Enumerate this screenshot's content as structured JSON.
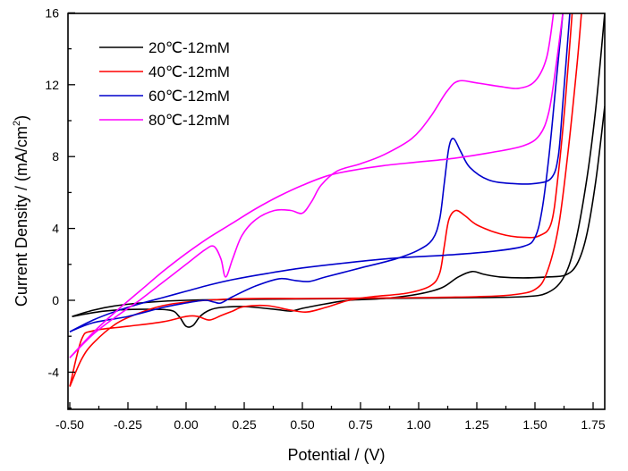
{
  "chart_data": {
    "type": "line",
    "title": "",
    "xlabel": "Potential / (V)",
    "ylabel": "Current Density / (mA/cm²)",
    "ylabel_main": "Current Density / (mA/cm",
    "ylabel_sup": "2",
    "ylabel_end": ")",
    "xlim": [
      -0.51,
      1.8
    ],
    "ylim": [
      -6,
      16
    ],
    "x_ticks": [
      -0.5,
      -0.25,
      0.0,
      0.25,
      0.5,
      0.75,
      1.0,
      1.25,
      1.5,
      1.75
    ],
    "x_tick_labels": [
      "-0.50",
      "-0.25",
      "0.00",
      "0.25",
      "0.50",
      "0.75",
      "1.00",
      "1.25",
      "1.50",
      "1.75"
    ],
    "y_ticks": [
      -4,
      0,
      4,
      8,
      12,
      16
    ],
    "y_tick_labels": [
      "-4",
      "0",
      "4",
      "8",
      "12",
      "16"
    ],
    "y_minor_ticks": [
      -6,
      -2,
      2,
      6,
      10,
      14
    ],
    "grid": false,
    "legend_position": "top-left",
    "series": [
      {
        "name": "20℃-12mM",
        "color": "#000000",
        "points": [
          [
            -0.49,
            -0.9
          ],
          [
            -0.4,
            -0.55
          ],
          [
            -0.3,
            -0.3
          ],
          [
            -0.15,
            -0.1
          ],
          [
            0.0,
            0.0
          ],
          [
            0.25,
            0.05
          ],
          [
            0.5,
            0.08
          ],
          [
            0.75,
            0.1
          ],
          [
            1.0,
            0.12
          ],
          [
            1.25,
            0.15
          ],
          [
            1.45,
            0.2
          ],
          [
            1.55,
            0.4
          ],
          [
            1.62,
            1.2
          ],
          [
            1.67,
            3
          ],
          [
            1.72,
            6.5
          ],
          [
            1.76,
            10.5
          ],
          [
            1.8,
            16
          ]
        ],
        "return_points": [
          [
            1.8,
            10.8
          ],
          [
            1.76,
            6.5
          ],
          [
            1.72,
            3.5
          ],
          [
            1.68,
            2.0
          ],
          [
            1.63,
            1.4
          ],
          [
            1.55,
            1.3
          ],
          [
            1.45,
            1.25
          ],
          [
            1.35,
            1.3
          ],
          [
            1.28,
            1.45
          ],
          [
            1.23,
            1.6
          ],
          [
            1.17,
            1.3
          ],
          [
            1.1,
            0.7
          ],
          [
            1.0,
            0.35
          ],
          [
            0.85,
            0.1
          ],
          [
            0.7,
            0.0
          ],
          [
            0.6,
            -0.2
          ],
          [
            0.5,
            -0.45
          ],
          [
            0.45,
            -0.6
          ],
          [
            0.38,
            -0.5
          ],
          [
            0.25,
            -0.35
          ],
          [
            0.15,
            -0.4
          ],
          [
            0.1,
            -0.55
          ],
          [
            0.06,
            -0.9
          ],
          [
            0.03,
            -1.4
          ],
          [
            0.0,
            -1.45
          ],
          [
            -0.03,
            -0.9
          ],
          [
            -0.07,
            -0.55
          ],
          [
            -0.2,
            -0.5
          ],
          [
            -0.35,
            -0.6
          ],
          [
            -0.49,
            -0.9
          ]
        ]
      },
      {
        "name": "40℃-12mM",
        "color": "#ff0000",
        "points": [
          [
            -0.5,
            -4.8
          ],
          [
            -0.45,
            -3.3
          ],
          [
            -0.4,
            -2.4
          ],
          [
            -0.3,
            -1.3
          ],
          [
            -0.2,
            -0.7
          ],
          [
            -0.1,
            -0.3
          ],
          [
            0.0,
            -0.1
          ],
          [
            0.15,
            0.05
          ],
          [
            0.3,
            0.1
          ],
          [
            0.5,
            0.1
          ],
          [
            0.75,
            0.12
          ],
          [
            1.0,
            0.15
          ],
          [
            1.25,
            0.2
          ],
          [
            1.4,
            0.3
          ],
          [
            1.5,
            0.6
          ],
          [
            1.55,
            1.5
          ],
          [
            1.6,
            4
          ],
          [
            1.64,
            8
          ],
          [
            1.68,
            13
          ],
          [
            1.7,
            16
          ]
        ],
        "return_points": [
          [
            1.66,
            16
          ],
          [
            1.63,
            11
          ],
          [
            1.6,
            7
          ],
          [
            1.57,
            4.3
          ],
          [
            1.52,
            3.6
          ],
          [
            1.45,
            3.5
          ],
          [
            1.35,
            3.7
          ],
          [
            1.25,
            4.2
          ],
          [
            1.2,
            4.7
          ],
          [
            1.16,
            5.0
          ],
          [
            1.13,
            4.5
          ],
          [
            1.11,
            3.0
          ],
          [
            1.09,
            1.5
          ],
          [
            1.05,
            0.8
          ],
          [
            0.95,
            0.4
          ],
          [
            0.8,
            0.2
          ],
          [
            0.7,
            0.0
          ],
          [
            0.6,
            -0.4
          ],
          [
            0.52,
            -0.65
          ],
          [
            0.45,
            -0.55
          ],
          [
            0.35,
            -0.3
          ],
          [
            0.25,
            -0.35
          ],
          [
            0.2,
            -0.6
          ],
          [
            0.15,
            -0.85
          ],
          [
            0.1,
            -1.1
          ],
          [
            0.05,
            -0.9
          ],
          [
            0.0,
            -0.9
          ],
          [
            -0.1,
            -1.2
          ],
          [
            -0.25,
            -1.45
          ],
          [
            -0.4,
            -1.7
          ],
          [
            -0.45,
            -2.2
          ],
          [
            -0.5,
            -4.8
          ]
        ]
      },
      {
        "name": "60℃-12mM",
        "color": "#0000cc",
        "points": [
          [
            -0.5,
            -1.75
          ],
          [
            -0.4,
            -1.1
          ],
          [
            -0.3,
            -0.6
          ],
          [
            -0.2,
            -0.2
          ],
          [
            -0.1,
            0.15
          ],
          [
            0.0,
            0.5
          ],
          [
            0.1,
            0.85
          ],
          [
            0.2,
            1.15
          ],
          [
            0.35,
            1.5
          ],
          [
            0.5,
            1.8
          ],
          [
            0.7,
            2.1
          ],
          [
            0.9,
            2.35
          ],
          [
            1.1,
            2.5
          ],
          [
            1.3,
            2.7
          ],
          [
            1.45,
            3.0
          ],
          [
            1.5,
            3.5
          ],
          [
            1.53,
            5
          ],
          [
            1.56,
            8
          ],
          [
            1.59,
            12
          ],
          [
            1.62,
            16
          ]
        ],
        "return_points": [
          [
            1.65,
            16
          ],
          [
            1.62,
            11
          ],
          [
            1.6,
            8
          ],
          [
            1.57,
            6.8
          ],
          [
            1.5,
            6.5
          ],
          [
            1.4,
            6.5
          ],
          [
            1.3,
            6.7
          ],
          [
            1.22,
            7.4
          ],
          [
            1.18,
            8.3
          ],
          [
            1.15,
            9.0
          ],
          [
            1.13,
            8.5
          ],
          [
            1.11,
            6.5
          ],
          [
            1.09,
            4.5
          ],
          [
            1.06,
            3.4
          ],
          [
            1.0,
            2.8
          ],
          [
            0.9,
            2.3
          ],
          [
            0.75,
            1.8
          ],
          [
            0.6,
            1.3
          ],
          [
            0.53,
            1.05
          ],
          [
            0.47,
            1.1
          ],
          [
            0.4,
            1.2
          ],
          [
            0.3,
            0.8
          ],
          [
            0.2,
            0.2
          ],
          [
            0.15,
            -0.15
          ],
          [
            0.12,
            -0.1
          ],
          [
            0.08,
            0.0
          ],
          [
            0.0,
            -0.15
          ],
          [
            -0.1,
            -0.4
          ],
          [
            -0.25,
            -0.9
          ],
          [
            -0.4,
            -1.25
          ],
          [
            -0.5,
            -1.75
          ]
        ]
      },
      {
        "name": "80℃-12mM",
        "color": "#ff00ff",
        "points": [
          [
            -0.5,
            -3.2
          ],
          [
            -0.4,
            -1.8
          ],
          [
            -0.3,
            -0.6
          ],
          [
            -0.2,
            0.5
          ],
          [
            -0.1,
            1.6
          ],
          [
            0.0,
            2.6
          ],
          [
            0.1,
            3.5
          ],
          [
            0.2,
            4.3
          ],
          [
            0.3,
            5.1
          ],
          [
            0.4,
            5.8
          ],
          [
            0.5,
            6.4
          ],
          [
            0.6,
            6.9
          ],
          [
            0.7,
            7.2
          ],
          [
            0.85,
            7.5
          ],
          [
            1.0,
            7.7
          ],
          [
            1.15,
            7.9
          ],
          [
            1.3,
            8.2
          ],
          [
            1.45,
            8.6
          ],
          [
            1.52,
            9.2
          ],
          [
            1.56,
            10.5
          ],
          [
            1.59,
            13
          ],
          [
            1.62,
            16
          ]
        ],
        "return_points": [
          [
            1.58,
            16
          ],
          [
            1.55,
            13.5
          ],
          [
            1.5,
            12.2
          ],
          [
            1.43,
            11.8
          ],
          [
            1.35,
            11.9
          ],
          [
            1.25,
            12.1
          ],
          [
            1.17,
            12.2
          ],
          [
            1.12,
            11.6
          ],
          [
            1.05,
            10.2
          ],
          [
            0.97,
            9.0
          ],
          [
            0.85,
            8.1
          ],
          [
            0.75,
            7.6
          ],
          [
            0.65,
            7.2
          ],
          [
            0.58,
            6.4
          ],
          [
            0.54,
            5.5
          ],
          [
            0.5,
            4.85
          ],
          [
            0.45,
            5.0
          ],
          [
            0.38,
            5.0
          ],
          [
            0.3,
            4.5
          ],
          [
            0.24,
            3.6
          ],
          [
            0.2,
            2.3
          ],
          [
            0.17,
            1.3
          ],
          [
            0.15,
            2.3
          ],
          [
            0.12,
            3.0
          ],
          [
            0.08,
            2.8
          ],
          [
            0.0,
            2.0
          ],
          [
            -0.1,
            1.0
          ],
          [
            -0.2,
            0.0
          ],
          [
            -0.3,
            -0.9
          ],
          [
            -0.4,
            -1.9
          ],
          [
            -0.5,
            -3.2
          ]
        ]
      }
    ]
  }
}
